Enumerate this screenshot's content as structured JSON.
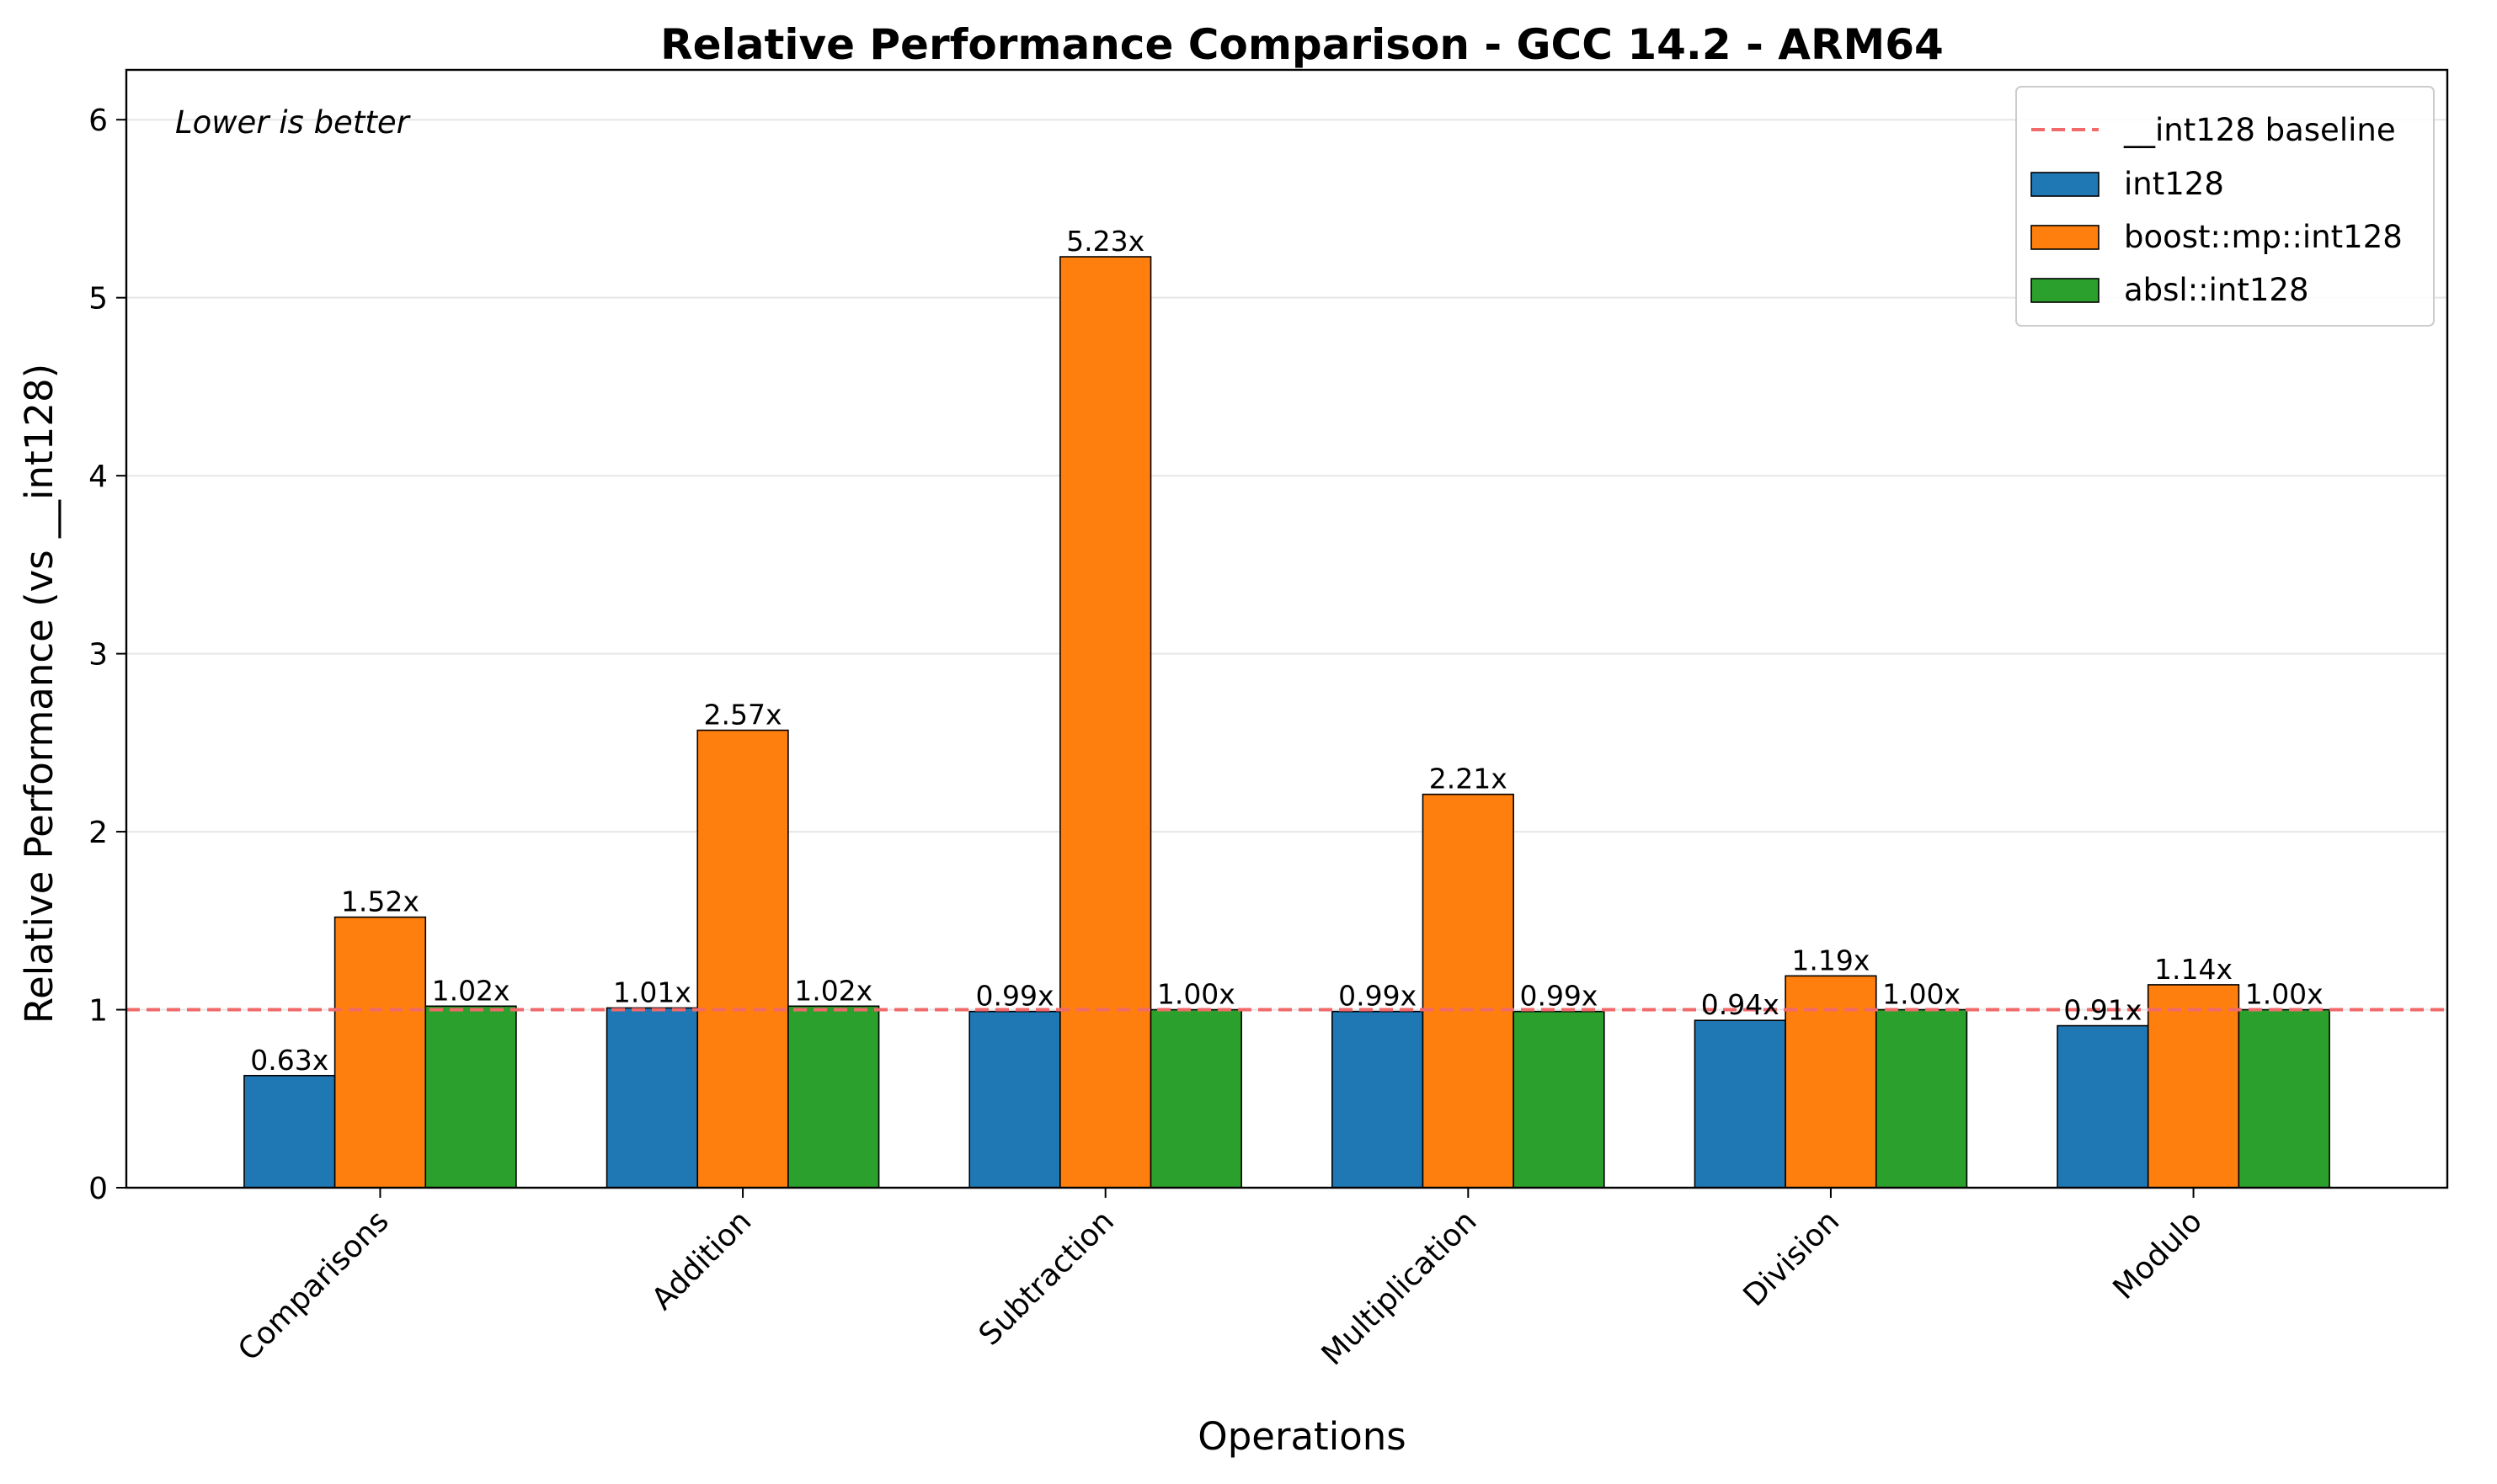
{
  "chart_data": {
    "type": "bar",
    "title": "Relative Performance Comparison - GCC 14.2 - ARM64",
    "xlabel": "Operations",
    "ylabel": "Relative Performance (vs __int128)",
    "annotation": "Lower is better",
    "categories": [
      "Comparisons",
      "Addition",
      "Subtraction",
      "Multiplication",
      "Division",
      "Modulo"
    ],
    "series": [
      {
        "name": "int128",
        "color": "#1f77b4",
        "values": [
          0.63,
          1.01,
          0.99,
          0.99,
          0.94,
          0.91
        ],
        "labels": [
          "0.63x",
          "1.01x",
          "0.99x",
          "0.99x",
          "0.94x",
          "0.91x"
        ]
      },
      {
        "name": "boost::mp::int128",
        "color": "#ff7f0e",
        "values": [
          1.52,
          2.57,
          5.23,
          2.21,
          1.19,
          1.14
        ],
        "labels": [
          "1.52x",
          "2.57x",
          "5.23x",
          "2.21x",
          "1.19x",
          "1.14x"
        ]
      },
      {
        "name": "absl::int128",
        "color": "#2ca02c",
        "values": [
          1.02,
          1.02,
          1.0,
          0.99,
          1.0,
          1.0
        ],
        "labels": [
          "1.02x",
          "1.02x",
          "1.00x",
          "0.99x",
          "1.00x",
          "1.00x"
        ]
      }
    ],
    "baseline": {
      "name": "__int128 baseline",
      "value": 1.0,
      "color": "#f06a6a",
      "style": "dashed"
    },
    "ylim": [
      0,
      6.28
    ],
    "yticks": [
      0,
      1,
      2,
      3,
      4,
      5,
      6
    ],
    "ytick_labels": [
      "0",
      "1",
      "2",
      "3",
      "4",
      "5",
      "6"
    ],
    "grid": "horizontal",
    "legend_position": "top-right",
    "xtick_rotation": "45 degrees"
  }
}
